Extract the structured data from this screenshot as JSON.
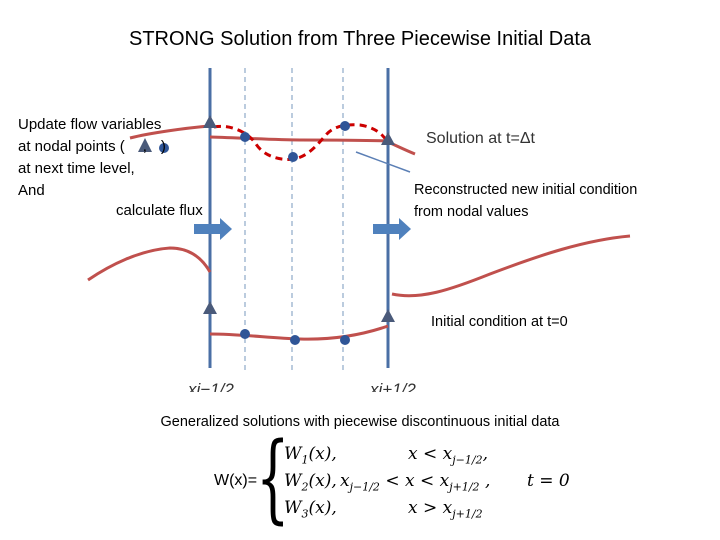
{
  "title": "STRONG Solution from  Three Piecewise Initial Data",
  "update_text": {
    "line1": "Update flow variables",
    "line2a": "at nodal points (",
    "line2b": ",",
    "line2c": ")",
    "line3": "at next time level,",
    "line4": "And"
  },
  "calc_flux": "calculate flux",
  "solution_label": "Solution at t=Δt",
  "reconstructed": {
    "line1": "Reconstructed new initial condition",
    "line2": "from nodal values"
  },
  "initial_condition_label": "Initial condition at t=0",
  "x_labels": {
    "left": "xj−1/2",
    "right": "xj+1/2"
  },
  "generalized_text": "Generalized solutions with piecewise discontinuous initial data",
  "equation": {
    "lhs": "W(x)=",
    "case1": {
      "func": "W",
      "sub": "1",
      "arg": "(x),",
      "cond_pre": "x < x",
      "cond_sub": "j−1/2",
      "cond_post": ","
    },
    "case2": {
      "func": "W",
      "sub": "2",
      "arg": "(x),",
      "cond_pre": "x",
      "cond_sub1": "j−1/2",
      "cond_mid": " < x < x",
      "cond_sub2": "j+1/2",
      "cond_post": " ,"
    },
    "case3": {
      "func": "W",
      "sub": "3",
      "arg": "(x),",
      "cond_pre": "x > x",
      "cond_sub": "j+1/2"
    },
    "t_condition": "t = 0"
  },
  "colors": {
    "interface_line": "#4a6fa5",
    "nodal_point": "#2f5597",
    "curve_red": "#c0504d",
    "dashed_red": "#cc0000",
    "flux_arrow": "#4f81bd",
    "triangle": "#4a5a7a",
    "dashed_gray": "#8ea9c8"
  },
  "icons": {
    "triangle": "triangle-marker-icon",
    "circle": "circle-marker-icon",
    "arrow": "flux-arrow-icon"
  }
}
